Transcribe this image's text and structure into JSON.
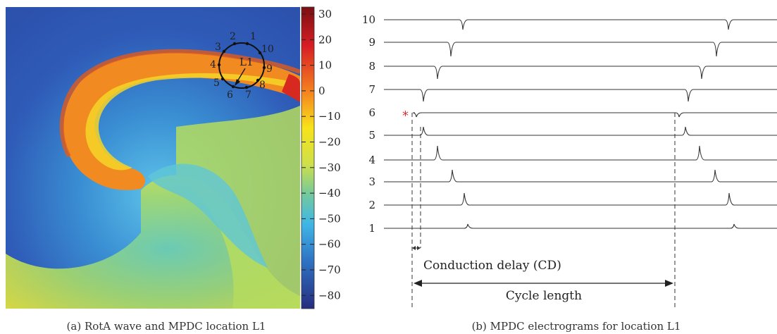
{
  "panel_a": {
    "caption": "(a) RotA wave and MPDC location L1",
    "location_label": "L1",
    "electrode_labels": [
      "1",
      "2",
      "3",
      "4",
      "5",
      "6",
      "7",
      "8",
      "9",
      "10"
    ],
    "colorbar_ticks": [
      "30",
      "20",
      "10",
      "0",
      "−10",
      "−20",
      "−30",
      "−40",
      "−50",
      "−60",
      "−70",
      "−80"
    ]
  },
  "panel_b": {
    "caption": "(b) MPDC electrograms for location L1",
    "channel_labels": [
      "10",
      "9",
      "8",
      "7",
      "6",
      "5",
      "4",
      "3",
      "2",
      "1"
    ],
    "marker": "*",
    "conduction_delay_label": "Conduction delay (CD)",
    "cycle_length_label": "Cycle length"
  },
  "colors": {
    "marker": "#e03030",
    "trace": "#333333"
  }
}
